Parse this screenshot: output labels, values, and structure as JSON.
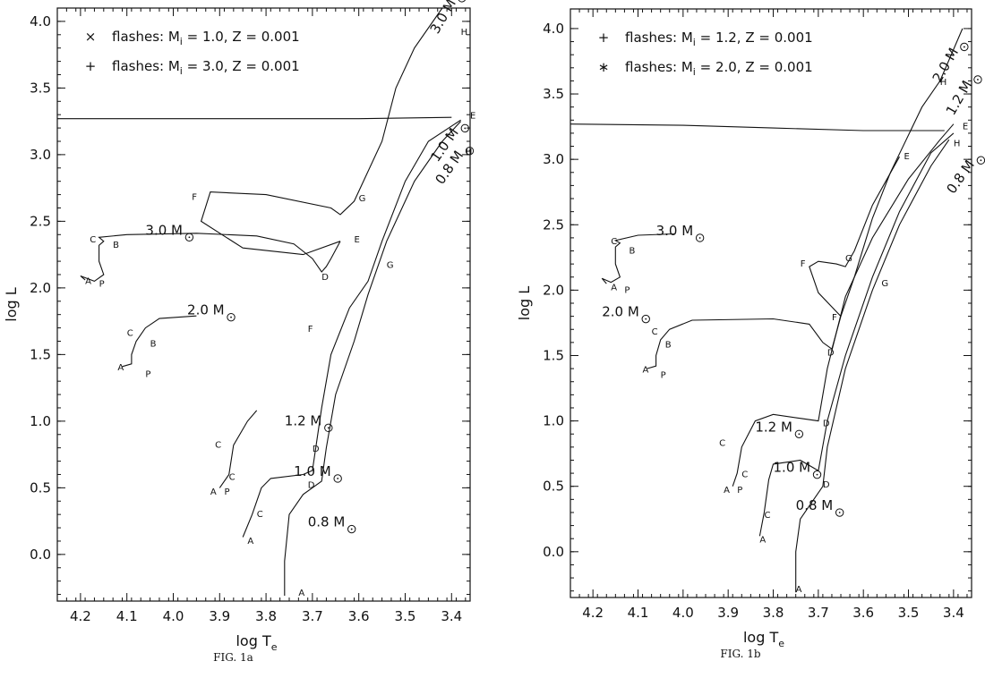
{
  "chart_data": [
    {
      "type": "line",
      "caption": "FIG. 1a",
      "xlabel": "log T",
      "xlabel_sub": "e",
      "ylabel": "log L",
      "xlim": [
        4.25,
        3.36
      ],
      "ylim": [
        -0.35,
        4.1
      ],
      "xticks": [
        "4.2",
        "4.1",
        "4.0",
        "3.9",
        "3.8",
        "3.7",
        "3.6",
        "3.5",
        "3.4"
      ],
      "yticks": [
        "0.0",
        "0.5",
        "1.0",
        "1.5",
        "2.0",
        "2.5",
        "3.0",
        "3.5",
        "4.0"
      ],
      "legend": [
        {
          "marker": "×",
          "text": "flashes: M",
          "sub": "i",
          "rest": " = 1.0, Z = 0.001"
        },
        {
          "marker": "+",
          "text": "flashes: M",
          "sub": "i",
          "rest": " = 3.0, Z = 0.001"
        }
      ],
      "mass_labels": [
        {
          "text": "3.0 M",
          "x": 4.06,
          "y": 2.4
        },
        {
          "text": "2.0 M",
          "x": 3.97,
          "y": 1.8
        },
        {
          "text": "1.2 M",
          "x": 3.76,
          "y": 0.97
        },
        {
          "text": "1.0 M",
          "x": 3.74,
          "y": 0.59
        },
        {
          "text": "0.8 M",
          "x": 3.71,
          "y": 0.21
        },
        {
          "text": "3.0 M",
          "x": 3.43,
          "y": 3.9,
          "rotate": -60
        },
        {
          "text": "1.0 M",
          "x": 3.43,
          "y": 2.94,
          "rotate": -55
        },
        {
          "text": "0.8 M",
          "x": 3.42,
          "y": 2.77,
          "rotate": -55
        }
      ],
      "point_labels": [
        {
          "t": "A",
          "x": 4.19,
          "y": 2.03
        },
        {
          "t": "P",
          "x": 4.16,
          "y": 2.01
        },
        {
          "t": "C",
          "x": 4.18,
          "y": 2.34
        },
        {
          "t": "B",
          "x": 4.13,
          "y": 2.3
        },
        {
          "t": "C",
          "x": 4.1,
          "y": 1.64
        },
        {
          "t": "B",
          "x": 4.05,
          "y": 1.56
        },
        {
          "t": "A",
          "x": 4.12,
          "y": 1.38
        },
        {
          "t": "P",
          "x": 4.06,
          "y": 1.33
        },
        {
          "t": "C",
          "x": 3.91,
          "y": 0.8
        },
        {
          "t": "C",
          "x": 3.88,
          "y": 0.56
        },
        {
          "t": "A",
          "x": 3.92,
          "y": 0.45
        },
        {
          "t": "P",
          "x": 3.89,
          "y": 0.45
        },
        {
          "t": "C",
          "x": 3.82,
          "y": 0.28
        },
        {
          "t": "A",
          "x": 3.84,
          "y": 0.08
        },
        {
          "t": "A",
          "x": 3.73,
          "y": -0.31
        },
        {
          "t": "D",
          "x": 3.7,
          "y": 0.77
        },
        {
          "t": "D",
          "x": 3.71,
          "y": 0.5
        },
        {
          "t": "D",
          "x": 3.68,
          "y": 2.06
        },
        {
          "t": "E",
          "x": 3.61,
          "y": 2.34
        },
        {
          "t": "F",
          "x": 3.71,
          "y": 1.67
        },
        {
          "t": "F",
          "x": 3.96,
          "y": 2.66
        },
        {
          "t": "G",
          "x": 3.6,
          "y": 2.65
        },
        {
          "t": "G",
          "x": 3.54,
          "y": 2.15
        },
        {
          "t": "E",
          "x": 3.36,
          "y": 3.27
        },
        {
          "t": "H",
          "x": 3.37,
          "y": 3.0
        },
        {
          "t": "H",
          "x": 3.38,
          "y": 3.9
        }
      ],
      "series": [
        {
          "points": [
            [
              4.19,
              2.06
            ],
            [
              4.2,
              2.09
            ],
            [
              4.17,
              2.05
            ],
            [
              4.15,
              2.1
            ],
            [
              4.16,
              2.2
            ],
            [
              4.16,
              2.32
            ],
            [
              4.15,
              2.35
            ],
            [
              4.16,
              2.38
            ],
            [
              4.1,
              2.4
            ],
            [
              3.95,
              2.41
            ],
            [
              3.82,
              2.39
            ],
            [
              3.74,
              2.33
            ],
            [
              3.7,
              2.22
            ],
            [
              3.68,
              2.12
            ],
            [
              3.67,
              2.16
            ],
            [
              3.66,
              2.22
            ],
            [
              3.64,
              2.35
            ]
          ]
        },
        {
          "points": [
            [
              3.64,
              2.35
            ],
            [
              3.72,
              2.25
            ],
            [
              3.85,
              2.3
            ],
            [
              3.94,
              2.5
            ],
            [
              3.92,
              2.72
            ],
            [
              3.8,
              2.7
            ],
            [
              3.66,
              2.6
            ],
            [
              3.64,
              2.55
            ],
            [
              3.61,
              2.65
            ],
            [
              3.55,
              3.1
            ],
            [
              3.52,
              3.5
            ],
            [
              3.48,
              3.8
            ],
            [
              3.42,
              4.1
            ]
          ]
        },
        {
          "points": [
            [
              4.11,
              1.41
            ],
            [
              4.09,
              1.43
            ],
            [
              4.09,
              1.5
            ],
            [
              4.08,
              1.6
            ],
            [
              4.06,
              1.7
            ],
            [
              4.03,
              1.77
            ],
            [
              3.95,
              1.79
            ]
          ]
        },
        {
          "points": [
            [
              3.9,
              0.5
            ],
            [
              3.88,
              0.6
            ],
            [
              3.87,
              0.82
            ],
            [
              3.84,
              1.0
            ],
            [
              3.82,
              1.08
            ]
          ]
        },
        {
          "points": [
            [
              3.85,
              0.13
            ],
            [
              3.83,
              0.3
            ],
            [
              3.81,
              0.5
            ],
            [
              3.79,
              0.57
            ],
            [
              3.72,
              0.6
            ],
            [
              3.7,
              0.63
            ],
            [
              3.68,
              1.1
            ],
            [
              3.66,
              1.5
            ],
            [
              3.62,
              1.85
            ],
            [
              3.58,
              2.05
            ],
            [
              3.55,
              2.35
            ],
            [
              3.5,
              2.8
            ],
            [
              3.45,
              3.1
            ],
            [
              3.38,
              3.26
            ]
          ]
        },
        {
          "points": [
            [
              3.76,
              -0.31
            ],
            [
              3.76,
              -0.05
            ],
            [
              3.75,
              0.3
            ],
            [
              3.72,
              0.45
            ],
            [
              3.68,
              0.55
            ],
            [
              3.67,
              0.8
            ],
            [
              3.65,
              1.2
            ],
            [
              3.61,
              1.6
            ],
            [
              3.58,
              1.95
            ],
            [
              3.54,
              2.35
            ],
            [
              3.48,
              2.8
            ],
            [
              3.42,
              3.1
            ],
            [
              3.38,
              3.25
            ]
          ]
        },
        {
          "points": [
            [
              3.4,
              3.28
            ],
            [
              3.6,
              3.27
            ],
            [
              3.8,
              3.27
            ],
            [
              4.0,
              3.27
            ],
            [
              4.25,
              3.27
            ]
          ]
        }
      ]
    },
    {
      "type": "line",
      "caption": "FIG. 1b",
      "xlabel": "log T",
      "xlabel_sub": "e",
      "ylabel": "log L",
      "xlim": [
        4.25,
        3.36
      ],
      "ylim": [
        -0.35,
        4.15
      ],
      "xticks": [
        "4.2",
        "4.1",
        "4.0",
        "3.9",
        "3.8",
        "3.7",
        "3.6",
        "3.5",
        "3.4"
      ],
      "yticks": [
        "0.0",
        "0.5",
        "1.0",
        "1.5",
        "2.0",
        "2.5",
        "3.0",
        "3.5",
        "4.0"
      ],
      "legend": [
        {
          "marker": "+",
          "text": "flashes: M",
          "sub": "i",
          "rest": " = 1.2, Z = 0.001"
        },
        {
          "marker": "∗",
          "text": "flashes: M",
          "sub": "i",
          "rest": " = 2.0, Z = 0.001"
        }
      ],
      "mass_labels": [
        {
          "text": "3.0 M",
          "x": 4.06,
          "y": 2.42
        },
        {
          "text": "2.0 M",
          "x": 4.18,
          "y": 1.8
        },
        {
          "text": "1.2 M",
          "x": 3.84,
          "y": 0.92
        },
        {
          "text": "1.0 M",
          "x": 3.8,
          "y": 0.61
        },
        {
          "text": "0.8 M",
          "x": 3.75,
          "y": 0.32
        },
        {
          "text": "2.0 M",
          "x": 3.43,
          "y": 3.58,
          "rotate": -60
        },
        {
          "text": "1.2 M",
          "x": 3.4,
          "y": 3.33,
          "rotate": -60
        },
        {
          "text": "0.8 M",
          "x": 3.4,
          "y": 2.73,
          "rotate": -55
        }
      ],
      "point_labels": [
        {
          "t": "A",
          "x": 4.16,
          "y": 2.0
        },
        {
          "t": "P",
          "x": 4.13,
          "y": 1.98
        },
        {
          "t": "C",
          "x": 4.16,
          "y": 2.35
        },
        {
          "t": "B",
          "x": 4.12,
          "y": 2.28
        },
        {
          "t": "C",
          "x": 4.07,
          "y": 1.66
        },
        {
          "t": "B",
          "x": 4.04,
          "y": 1.56
        },
        {
          "t": "A",
          "x": 4.09,
          "y": 1.37
        },
        {
          "t": "P",
          "x": 4.05,
          "y": 1.33
        },
        {
          "t": "C",
          "x": 3.92,
          "y": 0.81
        },
        {
          "t": "C",
          "x": 3.87,
          "y": 0.57
        },
        {
          "t": "A",
          "x": 3.91,
          "y": 0.45
        },
        {
          "t": "P",
          "x": 3.88,
          "y": 0.45
        },
        {
          "t": "C",
          "x": 3.82,
          "y": 0.26
        },
        {
          "t": "A",
          "x": 3.83,
          "y": 0.07
        },
        {
          "t": "A",
          "x": 3.75,
          "y": -0.31
        },
        {
          "t": "D",
          "x": 3.69,
          "y": 0.96
        },
        {
          "t": "D",
          "x": 3.69,
          "y": 0.49
        },
        {
          "t": "D",
          "x": 3.68,
          "y": 1.5
        },
        {
          "t": "E",
          "x": 3.51,
          "y": 3.0
        },
        {
          "t": "F",
          "x": 3.74,
          "y": 2.18
        },
        {
          "t": "F",
          "x": 3.67,
          "y": 1.77
        },
        {
          "t": "G",
          "x": 3.64,
          "y": 2.22
        },
        {
          "t": "G",
          "x": 3.56,
          "y": 2.03
        },
        {
          "t": "E",
          "x": 3.38,
          "y": 3.23
        },
        {
          "t": "H",
          "x": 3.4,
          "y": 3.1
        },
        {
          "t": "H",
          "x": 3.43,
          "y": 3.57
        }
      ],
      "series": [
        {
          "points": [
            [
              4.17,
              2.05
            ],
            [
              4.18,
              2.09
            ],
            [
              4.16,
              2.06
            ],
            [
              4.14,
              2.1
            ],
            [
              4.15,
              2.2
            ],
            [
              4.15,
              2.33
            ],
            [
              4.14,
              2.36
            ],
            [
              4.15,
              2.38
            ],
            [
              4.1,
              2.42
            ],
            [
              4.02,
              2.43
            ]
          ]
        },
        {
          "points": [
            [
              4.08,
              1.4
            ],
            [
              4.06,
              1.42
            ],
            [
              4.06,
              1.5
            ],
            [
              4.05,
              1.62
            ],
            [
              4.03,
              1.7
            ],
            [
              3.98,
              1.77
            ],
            [
              3.8,
              1.78
            ],
            [
              3.72,
              1.74
            ],
            [
              3.69,
              1.6
            ],
            [
              3.67,
              1.55
            ]
          ]
        },
        {
          "points": [
            [
              3.67,
              1.55
            ],
            [
              3.65,
              1.8
            ],
            [
              3.62,
              2.1
            ],
            [
              3.58,
              2.55
            ],
            [
              3.54,
              2.9
            ],
            [
              3.47,
              3.4
            ],
            [
              3.43,
              3.6
            ],
            [
              3.38,
              4.0
            ]
          ]
        },
        {
          "points": [
            [
              3.65,
              1.8
            ],
            [
              3.7,
              1.98
            ],
            [
              3.72,
              2.18
            ],
            [
              3.7,
              2.22
            ],
            [
              3.66,
              2.2
            ],
            [
              3.64,
              2.18
            ],
            [
              3.62,
              2.3
            ],
            [
              3.58,
              2.65
            ],
            [
              3.52,
              3.02
            ]
          ]
        },
        {
          "points": [
            [
              3.89,
              0.5
            ],
            [
              3.88,
              0.6
            ],
            [
              3.87,
              0.8
            ],
            [
              3.84,
              1.0
            ],
            [
              3.8,
              1.05
            ],
            [
              3.74,
              1.02
            ],
            [
              3.7,
              1.0
            ],
            [
              3.68,
              1.4
            ],
            [
              3.64,
              1.95
            ],
            [
              3.58,
              2.4
            ],
            [
              3.5,
              2.85
            ],
            [
              3.43,
              3.15
            ],
            [
              3.4,
              3.27
            ]
          ]
        },
        {
          "points": [
            [
              3.83,
              0.12
            ],
            [
              3.82,
              0.3
            ],
            [
              3.81,
              0.55
            ],
            [
              3.8,
              0.67
            ],
            [
              3.74,
              0.7
            ],
            [
              3.7,
              0.62
            ],
            [
              3.68,
              1.0
            ],
            [
              3.64,
              1.5
            ],
            [
              3.58,
              2.1
            ],
            [
              3.52,
              2.6
            ],
            [
              3.45,
              3.05
            ],
            [
              3.4,
              3.2
            ]
          ]
        },
        {
          "points": [
            [
              3.75,
              -0.31
            ],
            [
              3.75,
              0.0
            ],
            [
              3.74,
              0.25
            ],
            [
              3.72,
              0.35
            ],
            [
              3.69,
              0.5
            ],
            [
              3.68,
              0.8
            ],
            [
              3.64,
              1.4
            ],
            [
              3.58,
              2.0
            ],
            [
              3.52,
              2.5
            ],
            [
              3.45,
              2.95
            ],
            [
              3.41,
              3.15
            ]
          ]
        },
        {
          "points": [
            [
              3.42,
              3.22
            ],
            [
              3.6,
              3.22
            ],
            [
              3.8,
              3.24
            ],
            [
              4.0,
              3.26
            ],
            [
              4.25,
              3.27
            ]
          ]
        }
      ]
    }
  ]
}
